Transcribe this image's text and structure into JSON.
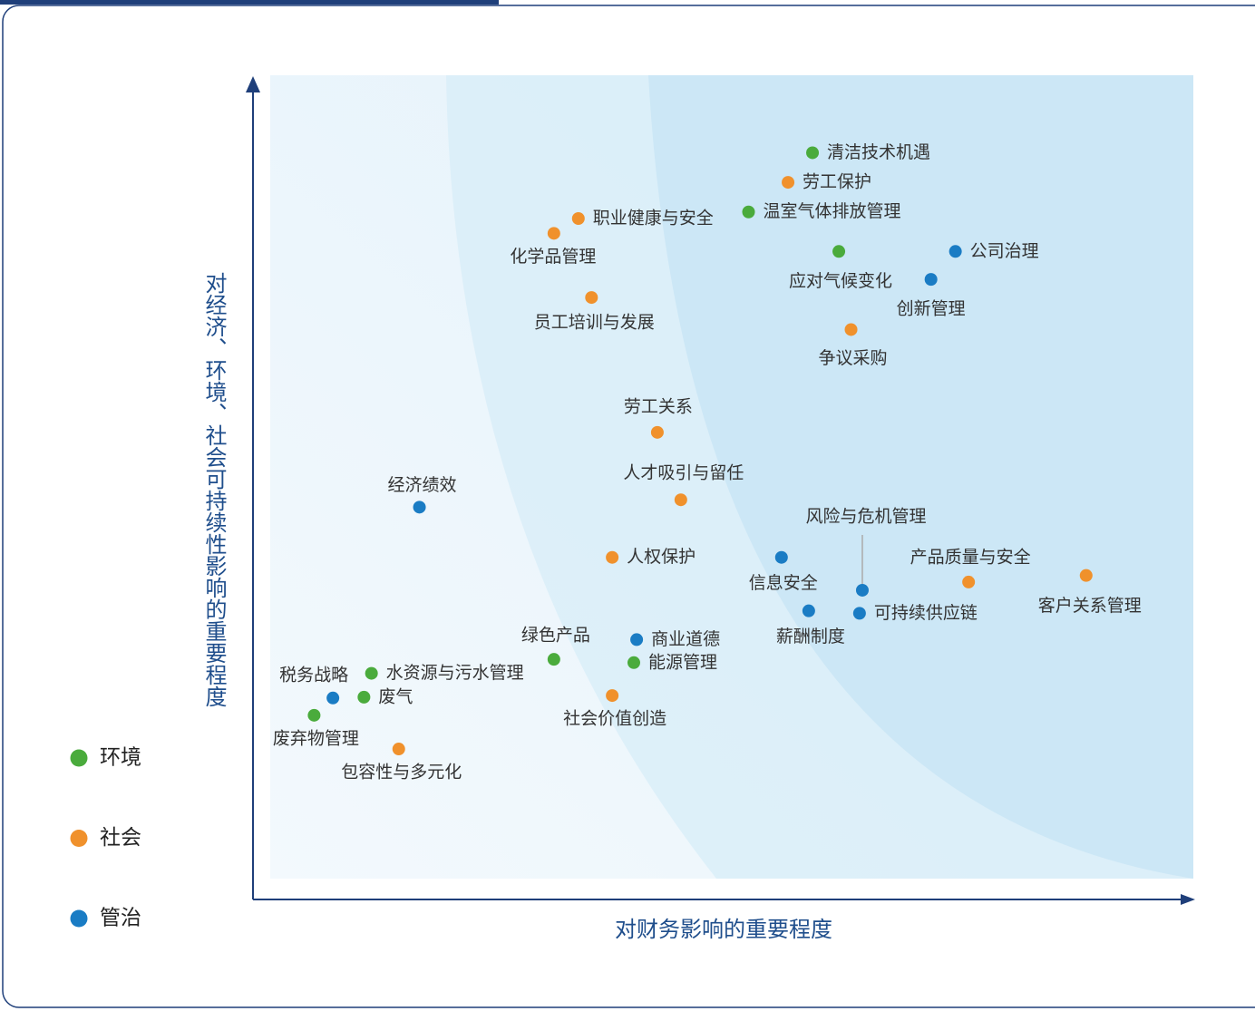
{
  "chart_data": {
    "type": "scatter",
    "xlabel": "对财务影响的重要程度",
    "ylabel": "对经济、环境、社会可持续性影响的重要程度",
    "xlim": [
      0,
      100
    ],
    "ylim": [
      0,
      100
    ],
    "series": [
      {
        "name": "环境",
        "color": "#4aab3c",
        "labels": [
          "清洁技术机遇",
          "温室气体排放管理",
          "应对气候变化",
          "绿色产品",
          "水资源与污水管理",
          "废气",
          "废弃物管理",
          "能源管理"
        ],
        "x": [
          59.5,
          52.7,
          62.3,
          32.0,
          12.6,
          11.8,
          6.5,
          40.5
        ],
        "values": [
          90.8,
          83.6,
          78.8,
          29.2,
          27.5,
          24.6,
          22.4,
          28.8
        ]
      },
      {
        "name": "社会",
        "color": "#f0912c",
        "labels": [
          "劳工保护",
          "职业健康与安全",
          "化学品管理",
          "员工培训与发展",
          "争议采购",
          "劳工关系",
          "人才吸引与留任",
          "人权保护",
          "产品质量与安全",
          "客户关系管理",
          "社会价值创造",
          "包容性与多元化"
        ],
        "x": [
          56.9,
          34.6,
          32.0,
          36.0,
          63.6,
          43.0,
          45.5,
          38.2,
          76.1,
          88.6,
          38.2,
          15.5
        ],
        "values": [
          87.2,
          82.8,
          81.0,
          73.2,
          69.3,
          56.8,
          48.6,
          41.6,
          38.6,
          39.4,
          24.8,
          18.3
        ]
      },
      {
        "name": "管治",
        "color": "#1a7cc4",
        "labels": [
          "公司治理",
          "创新管理",
          "经济绩效",
          "信息安全",
          "风险与危机管理",
          "薪酬制度",
          "可持续供应链",
          "商业道德",
          "税务战略"
        ],
        "x": [
          74.7,
          72.1,
          17.7,
          56.2,
          64.8,
          59.1,
          64.5,
          40.8,
          8.5
        ],
        "values": [
          78.8,
          75.4,
          47.7,
          41.6,
          37.6,
          35.1,
          34.8,
          31.6,
          24.5
        ]
      }
    ]
  }
}
